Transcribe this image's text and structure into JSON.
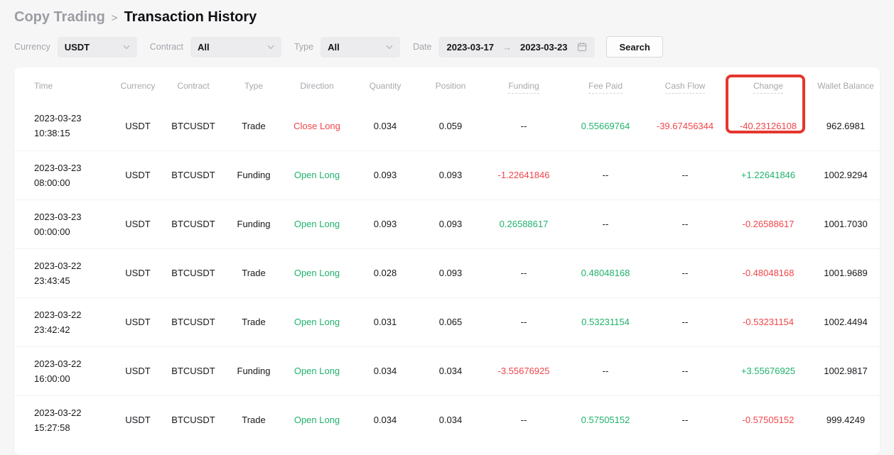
{
  "breadcrumb": {
    "parent": "Copy Trading",
    "separator": ">",
    "current": "Transaction History"
  },
  "filters": {
    "currency_label": "Currency",
    "currency_value": "USDT",
    "contract_label": "Contract",
    "contract_value": "All",
    "type_label": "Type",
    "type_value": "All",
    "date_label": "Date",
    "date_start": "2023-03-17",
    "date_arrow": "→",
    "date_end": "2023-03-23",
    "search_label": "Search"
  },
  "table": {
    "columns": [
      {
        "key": "time",
        "label": "Time",
        "tooltip": false
      },
      {
        "key": "currency",
        "label": "Currency",
        "tooltip": false
      },
      {
        "key": "contract",
        "label": "Contract",
        "tooltip": false
      },
      {
        "key": "type",
        "label": "Type",
        "tooltip": false
      },
      {
        "key": "direction",
        "label": "Direction",
        "tooltip": false
      },
      {
        "key": "quantity",
        "label": "Quantity",
        "tooltip": false
      },
      {
        "key": "position",
        "label": "Position",
        "tooltip": false
      },
      {
        "key": "funding",
        "label": "Funding",
        "tooltip": true
      },
      {
        "key": "fee_paid",
        "label": "Fee Paid",
        "tooltip": true
      },
      {
        "key": "cash_flow",
        "label": "Cash Flow",
        "tooltip": true
      },
      {
        "key": "change",
        "label": "Change",
        "tooltip": true
      },
      {
        "key": "wallet_balance",
        "label": "Wallet Balance",
        "tooltip": false
      }
    ],
    "rows": [
      {
        "time": {
          "v": "2023-03-23",
          "v2": "10:38:15"
        },
        "currency": {
          "v": "USDT",
          "c": "dark"
        },
        "contract": {
          "v": "BTCUSDT",
          "c": "dark"
        },
        "type": {
          "v": "Trade",
          "c": "dark"
        },
        "direction": {
          "v": "Close Long",
          "c": "red"
        },
        "quantity": {
          "v": "0.034",
          "c": "dark"
        },
        "position": {
          "v": "0.059",
          "c": "dark"
        },
        "funding": {
          "v": "--",
          "c": "dark"
        },
        "fee_paid": {
          "v": "0.55669764",
          "c": "green"
        },
        "cash_flow": {
          "v": "-39.67456344",
          "c": "red"
        },
        "change": {
          "v": "-40.23126108",
          "c": "red"
        },
        "wallet_balance": {
          "v": "962.6981",
          "c": "dark"
        }
      },
      {
        "time": {
          "v": "2023-03-23",
          "v2": "08:00:00"
        },
        "currency": {
          "v": "USDT",
          "c": "dark"
        },
        "contract": {
          "v": "BTCUSDT",
          "c": "dark"
        },
        "type": {
          "v": "Funding",
          "c": "dark"
        },
        "direction": {
          "v": "Open Long",
          "c": "green"
        },
        "quantity": {
          "v": "0.093",
          "c": "dark"
        },
        "position": {
          "v": "0.093",
          "c": "dark"
        },
        "funding": {
          "v": "-1.22641846",
          "c": "red"
        },
        "fee_paid": {
          "v": "--",
          "c": "dark"
        },
        "cash_flow": {
          "v": "--",
          "c": "dark"
        },
        "change": {
          "v": "+1.22641846",
          "c": "green"
        },
        "wallet_balance": {
          "v": "1002.9294",
          "c": "dark"
        }
      },
      {
        "time": {
          "v": "2023-03-23",
          "v2": "00:00:00"
        },
        "currency": {
          "v": "USDT",
          "c": "dark"
        },
        "contract": {
          "v": "BTCUSDT",
          "c": "dark"
        },
        "type": {
          "v": "Funding",
          "c": "dark"
        },
        "direction": {
          "v": "Open Long",
          "c": "green"
        },
        "quantity": {
          "v": "0.093",
          "c": "dark"
        },
        "position": {
          "v": "0.093",
          "c": "dark"
        },
        "funding": {
          "v": "0.26588617",
          "c": "green"
        },
        "fee_paid": {
          "v": "--",
          "c": "dark"
        },
        "cash_flow": {
          "v": "--",
          "c": "dark"
        },
        "change": {
          "v": "-0.26588617",
          "c": "red"
        },
        "wallet_balance": {
          "v": "1001.7030",
          "c": "dark"
        }
      },
      {
        "time": {
          "v": "2023-03-22",
          "v2": "23:43:45"
        },
        "currency": {
          "v": "USDT",
          "c": "dark"
        },
        "contract": {
          "v": "BTCUSDT",
          "c": "dark"
        },
        "type": {
          "v": "Trade",
          "c": "dark"
        },
        "direction": {
          "v": "Open Long",
          "c": "green"
        },
        "quantity": {
          "v": "0.028",
          "c": "dark"
        },
        "position": {
          "v": "0.093",
          "c": "dark"
        },
        "funding": {
          "v": "--",
          "c": "dark"
        },
        "fee_paid": {
          "v": "0.48048168",
          "c": "green"
        },
        "cash_flow": {
          "v": "--",
          "c": "dark"
        },
        "change": {
          "v": "-0.48048168",
          "c": "red"
        },
        "wallet_balance": {
          "v": "1001.9689",
          "c": "dark"
        }
      },
      {
        "time": {
          "v": "2023-03-22",
          "v2": "23:42:42"
        },
        "currency": {
          "v": "USDT",
          "c": "dark"
        },
        "contract": {
          "v": "BTCUSDT",
          "c": "dark"
        },
        "type": {
          "v": "Trade",
          "c": "dark"
        },
        "direction": {
          "v": "Open Long",
          "c": "green"
        },
        "quantity": {
          "v": "0.031",
          "c": "dark"
        },
        "position": {
          "v": "0.065",
          "c": "dark"
        },
        "funding": {
          "v": "--",
          "c": "dark"
        },
        "fee_paid": {
          "v": "0.53231154",
          "c": "green"
        },
        "cash_flow": {
          "v": "--",
          "c": "dark"
        },
        "change": {
          "v": "-0.53231154",
          "c": "red"
        },
        "wallet_balance": {
          "v": "1002.4494",
          "c": "dark"
        }
      },
      {
        "time": {
          "v": "2023-03-22",
          "v2": "16:00:00"
        },
        "currency": {
          "v": "USDT",
          "c": "dark"
        },
        "contract": {
          "v": "BTCUSDT",
          "c": "dark"
        },
        "type": {
          "v": "Funding",
          "c": "dark"
        },
        "direction": {
          "v": "Open Long",
          "c": "green"
        },
        "quantity": {
          "v": "0.034",
          "c": "dark"
        },
        "position": {
          "v": "0.034",
          "c": "dark"
        },
        "funding": {
          "v": "-3.55676925",
          "c": "red"
        },
        "fee_paid": {
          "v": "--",
          "c": "dark"
        },
        "cash_flow": {
          "v": "--",
          "c": "dark"
        },
        "change": {
          "v": "+3.55676925",
          "c": "green"
        },
        "wallet_balance": {
          "v": "1002.9817",
          "c": "dark"
        }
      },
      {
        "time": {
          "v": "2023-03-22",
          "v2": "15:27:58"
        },
        "currency": {
          "v": "USDT",
          "c": "dark"
        },
        "contract": {
          "v": "BTCUSDT",
          "c": "dark"
        },
        "type": {
          "v": "Trade",
          "c": "dark"
        },
        "direction": {
          "v": "Open Long",
          "c": "green"
        },
        "quantity": {
          "v": "0.034",
          "c": "dark"
        },
        "position": {
          "v": "0.034",
          "c": "dark"
        },
        "funding": {
          "v": "--",
          "c": "dark"
        },
        "fee_paid": {
          "v": "0.57505152",
          "c": "green"
        },
        "cash_flow": {
          "v": "--",
          "c": "dark"
        },
        "change": {
          "v": "-0.57505152",
          "c": "red"
        },
        "wallet_balance": {
          "v": "999.4249",
          "c": "dark"
        }
      }
    ]
  },
  "colors": {
    "positive": "#20b26c",
    "negative": "#ef454a",
    "annotation": "#e4362e"
  },
  "annotation": {
    "shape": "rectangle",
    "highlights": "change-column-header-and-first-row-value"
  }
}
